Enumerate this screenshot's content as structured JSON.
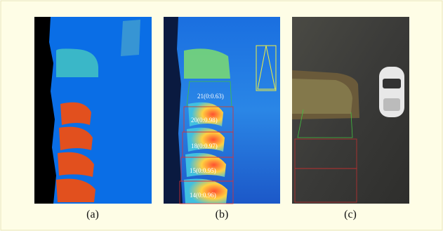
{
  "panels": [
    {
      "caption": "(a)"
    },
    {
      "caption": "(b)",
      "labels": [
        "21(0:0.63)",
        "20(0:0.98)",
        "18(0:0.97)",
        "15(0:0.95)",
        "14(0:0.96)"
      ]
    },
    {
      "caption": "(c)"
    }
  ]
}
